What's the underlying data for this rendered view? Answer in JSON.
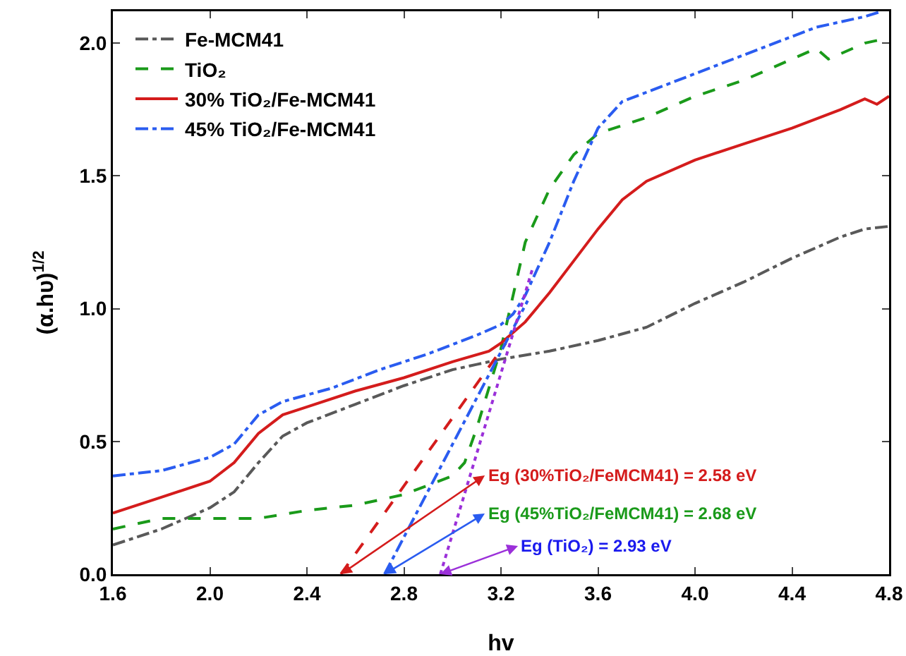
{
  "chart_data": {
    "type": "line",
    "xlabel": "hv",
    "ylabel": "(α.hυ)$^{1/2}$",
    "xlim": [
      1.6,
      4.8
    ],
    "ylim": [
      0,
      2.12
    ],
    "xticks": [
      1.6,
      {
        "value": 2.0,
        "label": "2.0"
      },
      2.4,
      2.8,
      3.2,
      3.6,
      {
        "value": 4.0,
        "label": "4.0"
      },
      4.4,
      4.8
    ],
    "yticks": [
      {
        "value": 0,
        "label": "0.0"
      },
      0.5,
      {
        "value": 1,
        "label": "1.0"
      },
      1.5,
      {
        "value": 2,
        "label": "2.0"
      }
    ],
    "grid": false,
    "legend": "top left",
    "marker": "none",
    "series": [
      {
        "name": "Fe-MCM41",
        "color": "#595959",
        "line_style": "dashdot",
        "x": [
          1.6,
          1.8,
          2.0,
          2.1,
          2.2,
          2.3,
          2.4,
          2.6,
          2.8,
          3.0,
          3.1,
          3.2,
          3.4,
          3.6,
          3.8,
          4.0,
          4.2,
          4.4,
          4.6,
          4.7,
          4.8
        ],
        "values": [
          0.11,
          0.17,
          0.25,
          0.31,
          0.42,
          0.52,
          0.57,
          0.64,
          0.71,
          0.77,
          0.79,
          0.81,
          0.84,
          0.88,
          0.93,
          1.02,
          1.1,
          1.19,
          1.27,
          1.3,
          1.31
        ]
      },
      {
        "name": "TiO₂",
        "color": "#1a9a1a",
        "line_style": "dashed",
        "x": [
          1.6,
          1.8,
          2.0,
          2.2,
          2.4,
          2.6,
          2.8,
          3.0,
          3.05,
          3.1,
          3.2,
          3.3,
          3.4,
          3.5,
          3.6,
          3.8,
          4.0,
          4.2,
          4.4,
          4.5,
          4.55,
          4.7,
          4.8
        ],
        "values": [
          0.17,
          0.21,
          0.21,
          0.21,
          0.24,
          0.26,
          0.3,
          0.37,
          0.42,
          0.55,
          0.85,
          1.25,
          1.45,
          1.58,
          1.66,
          1.72,
          1.8,
          1.86,
          1.94,
          1.98,
          1.94,
          2.0,
          2.02
        ]
      },
      {
        "name": "30% TiO₂/Fe-MCM41",
        "color": "#d41c1c",
        "line_style": "solid",
        "x": [
          1.6,
          1.8,
          2.0,
          2.1,
          2.2,
          2.3,
          2.4,
          2.6,
          2.8,
          3.0,
          3.15,
          3.2,
          3.3,
          3.4,
          3.5,
          3.6,
          3.7,
          3.8,
          4.0,
          4.2,
          4.4,
          4.6,
          4.7,
          4.75,
          4.8
        ],
        "values": [
          0.23,
          0.29,
          0.35,
          0.42,
          0.53,
          0.6,
          0.63,
          0.69,
          0.74,
          0.8,
          0.84,
          0.87,
          0.95,
          1.06,
          1.18,
          1.3,
          1.41,
          1.48,
          1.56,
          1.62,
          1.68,
          1.75,
          1.79,
          1.77,
          1.8
        ]
      },
      {
        "name": "45% TiO₂/Fe-MCM41",
        "color": "#2a5cf0",
        "line_style": "dashdot",
        "x": [
          1.6,
          1.8,
          2.0,
          2.1,
          2.2,
          2.3,
          2.5,
          2.7,
          2.9,
          3.1,
          3.2,
          3.25,
          3.3,
          3.4,
          3.5,
          3.6,
          3.7,
          3.9,
          4.1,
          4.3,
          4.5,
          4.7,
          4.77
        ],
        "values": [
          0.37,
          0.39,
          0.44,
          0.49,
          0.6,
          0.65,
          0.7,
          0.77,
          0.83,
          0.9,
          0.94,
          0.98,
          1.05,
          1.25,
          1.48,
          1.68,
          1.78,
          1.85,
          1.92,
          1.99,
          2.06,
          2.1,
          2.12
        ]
      },
      {
        "color": "#d41c1c",
        "line_style": "dashed",
        "x": [
          2.54,
          3.22
        ],
        "values": [
          0,
          0.87
        ]
      },
      {
        "color": "#2a5cf0",
        "line_style": "dashdot",
        "x": [
          2.72,
          3.31
        ],
        "values": [
          0,
          1.03
        ]
      },
      {
        "color": "#9b30d9",
        "line_style": "dotted",
        "x": [
          2.95,
          3.33
        ],
        "values": [
          0,
          1.15
        ]
      }
    ],
    "annotations": [
      {
        "text": "Eg (30%TiO₂/FeMCM41) = 2.58 eV",
        "x": 2.54,
        "y": 0
      },
      {
        "text": "Eg (45%TiO₂/FeMCM41) = 2.68 eV",
        "x": 2.72,
        "y": 0
      },
      {
        "text": "Eg (TiO₂) = 2.93 eV",
        "x": 2.95,
        "y": 0
      }
    ]
  }
}
